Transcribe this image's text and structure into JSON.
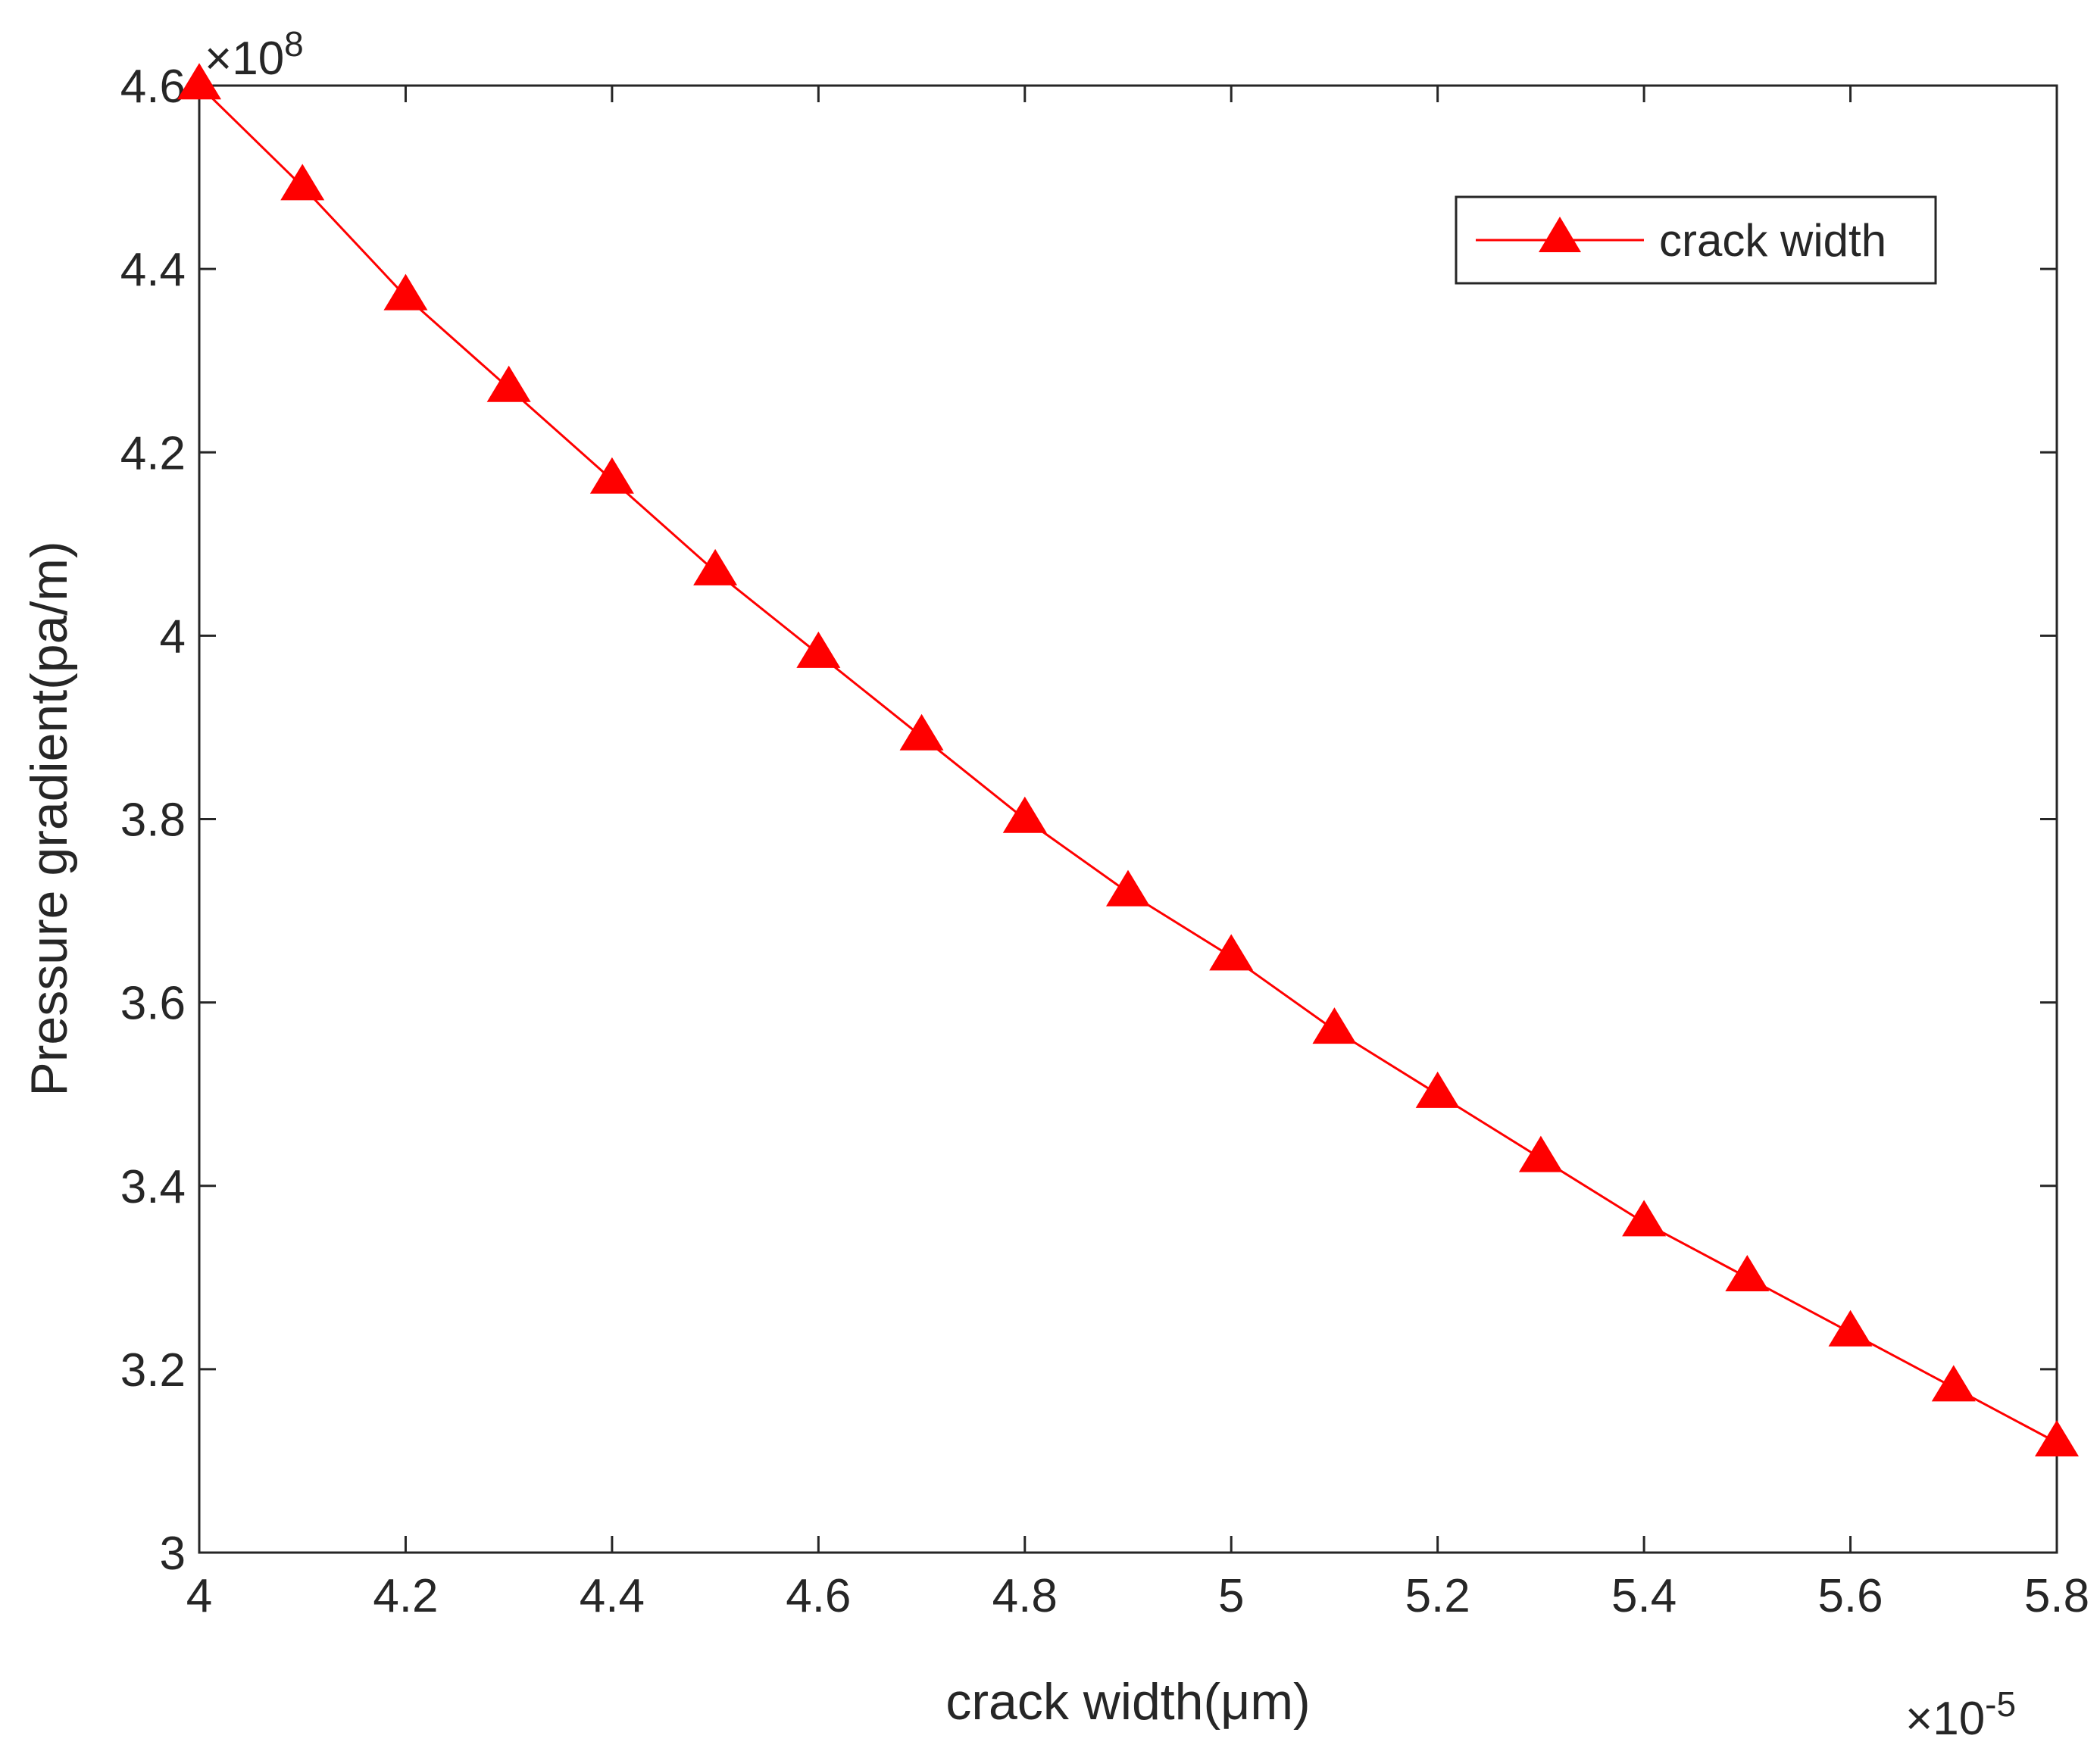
{
  "chart_data": {
    "type": "line",
    "title": "",
    "xlabel": "crack width(μm)",
    "ylabel": "Pressure gradient(pa/m)",
    "x_multiplier_label": "×10",
    "x_multiplier_exp": "-5",
    "y_multiplier_label": "×10",
    "y_multiplier_exp": "8",
    "xlim": [
      4,
      5.8
    ],
    "ylim": [
      3,
      4.6
    ],
    "xticks": [
      4,
      4.2,
      4.4,
      4.6,
      4.8,
      5,
      5.2,
      5.4,
      5.6,
      5.8
    ],
    "xtick_labels": [
      "4",
      "4.2",
      "4.4",
      "4.6",
      "4.8",
      "5",
      "5.2",
      "5.4",
      "5.6",
      "5.8"
    ],
    "yticks": [
      3,
      3.2,
      3.4,
      3.6,
      3.8,
      4,
      4.2,
      4.4,
      4.6
    ],
    "ytick_labels": [
      "3",
      "3.2",
      "3.4",
      "3.6",
      "3.8",
      "4",
      "4.2",
      "4.4",
      "4.6"
    ],
    "grid": false,
    "legend_position": "top-right",
    "series": [
      {
        "name": "crack width",
        "color": "#ff0000",
        "marker": "triangle",
        "x": [
          4.0,
          4.1,
          4.2,
          4.3,
          4.4,
          4.5,
          4.6,
          4.7,
          4.8,
          4.9,
          5.0,
          5.1,
          5.2,
          5.3,
          5.4,
          5.5,
          5.6,
          5.7,
          5.8
        ],
        "values": [
          4.6,
          4.49,
          4.37,
          4.27,
          4.17,
          4.07,
          3.98,
          3.89,
          3.8,
          3.72,
          3.65,
          3.57,
          3.5,
          3.43,
          3.36,
          3.3,
          3.24,
          3.18,
          3.12
        ]
      }
    ]
  }
}
